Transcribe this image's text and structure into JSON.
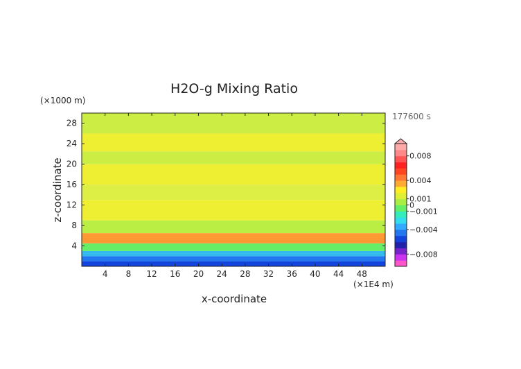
{
  "chart_data": {
    "type": "heatmap",
    "title": "H2O-g Mixing Ratio",
    "time_label": "177600 s",
    "xlabel": "x-coordinate",
    "ylabel": "z-coordinate",
    "x_unit": "(×1E4 m)",
    "y_unit": "(×1000 m)",
    "xlim": [
      0,
      52
    ],
    "ylim": [
      0,
      30
    ],
    "x_ticks": [
      "4",
      "8",
      "12",
      "16",
      "20",
      "24",
      "28",
      "32",
      "36",
      "40",
      "44",
      "48"
    ],
    "y_ticks": [
      "4",
      "8",
      "12",
      "16",
      "20",
      "24",
      "28"
    ],
    "colorbar": {
      "labels": [
        "0.008",
        "0.004",
        "0.001",
        "0",
        "−0.001",
        "−0.004",
        "−0.008"
      ],
      "label_values": [
        0.008,
        0.004,
        0.001,
        0,
        -0.001,
        -0.004,
        -0.008
      ],
      "range": [
        -0.01,
        0.01
      ],
      "colors": [
        "#ff55c8",
        "#cc33ee",
        "#7722cc",
        "#2222aa",
        "#1144dd",
        "#2277ee",
        "#33aaff",
        "#33ddee",
        "#33eebb",
        "#66ee66",
        "#aaee44",
        "#ddee33",
        "#ffee22",
        "#ffaa33",
        "#ff7733",
        "#ff4422",
        "#ff2222",
        "#ff5555",
        "#ff8888",
        "#ffaaaa"
      ]
    },
    "rows": [
      {
        "z": [
          0,
          1
        ],
        "color": "#1144dd"
      },
      {
        "z": [
          1,
          2
        ],
        "color": "#2277ee"
      },
      {
        "z": [
          2,
          3
        ],
        "color": "#33bbee"
      },
      {
        "z": [
          3,
          4.5
        ],
        "color": "#66ee66"
      },
      {
        "z": [
          4.5,
          6.5
        ],
        "color": "#ff9933"
      },
      {
        "z": [
          6.5,
          9
        ],
        "color": "#bbee44"
      },
      {
        "z": [
          9,
          13
        ],
        "color": "#eeee33"
      },
      {
        "z": [
          13,
          16
        ],
        "color": "#ddee44"
      },
      {
        "z": [
          16,
          20
        ],
        "color": "#eeee33"
      },
      {
        "z": [
          20,
          22.5
        ],
        "color": "#ccee44"
      },
      {
        "z": [
          22.5,
          26
        ],
        "color": "#eeee33"
      },
      {
        "z": [
          26,
          30
        ],
        "color": "#ccee44"
      }
    ]
  }
}
